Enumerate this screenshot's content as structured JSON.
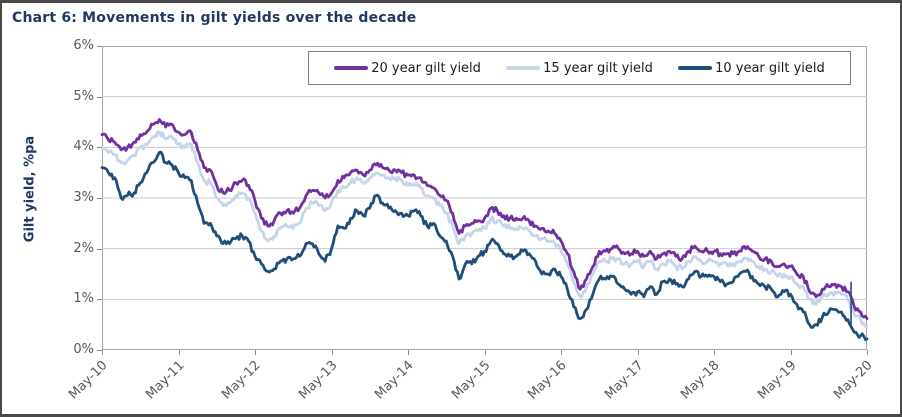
{
  "figure": {
    "title": "Chart 6: Movements in gilt yields over the decade"
  },
  "chart_data": {
    "type": "line",
    "title": "Chart 6: Movements in gilt yields over the decade",
    "xlabel": "",
    "ylabel": "Gilt yield, %pa",
    "ylim": [
      0,
      6
    ],
    "grid": true,
    "legend_position": "top-inside-bordered-box",
    "y_tick_labels": [
      "0%",
      "1%",
      "2%",
      "3%",
      "4%",
      "5%",
      "6%"
    ],
    "x_tick_labels": [
      "May-10",
      "May-11",
      "May-12",
      "May-13",
      "May-14",
      "May-15",
      "May-16",
      "May-17",
      "May-18",
      "May-19",
      "May-20"
    ],
    "x_resolution": "monthly, May-2010 to May-2020 (121 points per series)",
    "series": [
      {
        "name": "20 year gilt yield",
        "color": "#7030A0",
        "values": [
          4.25,
          4.15,
          4.1,
          3.95,
          4.0,
          4.1,
          4.25,
          4.3,
          4.45,
          4.55,
          4.4,
          4.45,
          4.3,
          4.25,
          4.3,
          3.95,
          3.6,
          3.55,
          3.25,
          3.1,
          3.15,
          3.3,
          3.35,
          3.25,
          2.95,
          2.6,
          2.45,
          2.55,
          2.7,
          2.75,
          2.7,
          2.8,
          3.05,
          3.15,
          3.1,
          3.0,
          3.1,
          3.35,
          3.4,
          3.5,
          3.55,
          3.45,
          3.55,
          3.65,
          3.6,
          3.55,
          3.55,
          3.5,
          3.45,
          3.45,
          3.4,
          3.25,
          3.2,
          3.05,
          2.95,
          2.7,
          2.3,
          2.45,
          2.5,
          2.55,
          2.6,
          2.8,
          2.75,
          2.65,
          2.6,
          2.6,
          2.6,
          2.55,
          2.45,
          2.4,
          2.35,
          2.3,
          2.15,
          1.9,
          1.55,
          1.2,
          1.4,
          1.65,
          1.95,
          1.95,
          2.0,
          2.0,
          1.9,
          1.9,
          1.95,
          1.85,
          1.95,
          1.8,
          1.9,
          1.95,
          1.85,
          1.8,
          1.95,
          2.05,
          1.95,
          1.95,
          1.95,
          1.9,
          1.9,
          1.9,
          1.95,
          2.0,
          1.95,
          1.85,
          1.8,
          1.75,
          1.65,
          1.7,
          1.65,
          1.5,
          1.45,
          1.15,
          1.05,
          1.2,
          1.25,
          1.3,
          1.25,
          1.15,
          0.85,
          0.75,
          0.62
        ]
      },
      {
        "name": "15 year gilt yield",
        "color": "#C6D5EC",
        "values": [
          4.0,
          3.9,
          3.85,
          3.7,
          3.75,
          3.85,
          4.0,
          4.05,
          4.2,
          4.3,
          4.17,
          4.2,
          4.05,
          4.0,
          4.05,
          3.7,
          3.35,
          3.3,
          3.0,
          2.85,
          2.9,
          3.05,
          3.1,
          3.0,
          2.7,
          2.35,
          2.15,
          2.25,
          2.4,
          2.45,
          2.4,
          2.5,
          2.8,
          2.9,
          2.85,
          2.75,
          2.9,
          3.15,
          3.2,
          3.3,
          3.4,
          3.3,
          3.4,
          3.5,
          3.45,
          3.4,
          3.4,
          3.35,
          3.25,
          3.25,
          3.2,
          3.05,
          3.0,
          2.85,
          2.7,
          2.45,
          2.1,
          2.25,
          2.3,
          2.35,
          2.4,
          2.6,
          2.55,
          2.45,
          2.4,
          2.4,
          2.4,
          2.35,
          2.25,
          2.2,
          2.15,
          2.1,
          1.95,
          1.7,
          1.35,
          1.05,
          1.25,
          1.5,
          1.75,
          1.75,
          1.8,
          1.8,
          1.7,
          1.7,
          1.75,
          1.65,
          1.75,
          1.6,
          1.7,
          1.75,
          1.65,
          1.6,
          1.75,
          1.85,
          1.75,
          1.75,
          1.75,
          1.7,
          1.7,
          1.7,
          1.75,
          1.8,
          1.75,
          1.65,
          1.6,
          1.55,
          1.45,
          1.5,
          1.45,
          1.3,
          1.25,
          1.0,
          0.9,
          1.05,
          1.1,
          1.15,
          1.1,
          1.0,
          0.7,
          0.6,
          0.47
        ]
      },
      {
        "name": "10 year gilt yield",
        "color": "#1F4E79",
        "values": [
          3.6,
          3.5,
          3.4,
          3.0,
          3.05,
          3.1,
          3.3,
          3.5,
          3.7,
          3.9,
          3.7,
          3.65,
          3.5,
          3.4,
          3.35,
          2.9,
          2.5,
          2.5,
          2.25,
          2.1,
          2.1,
          2.2,
          2.25,
          2.15,
          1.85,
          1.7,
          1.55,
          1.6,
          1.75,
          1.8,
          1.8,
          1.85,
          2.1,
          2.1,
          1.9,
          1.75,
          2.0,
          2.45,
          2.4,
          2.6,
          2.75,
          2.65,
          2.8,
          3.05,
          2.9,
          2.8,
          2.75,
          2.7,
          2.65,
          2.75,
          2.65,
          2.45,
          2.5,
          2.25,
          2.15,
          1.85,
          1.4,
          1.7,
          1.7,
          1.85,
          1.95,
          2.15,
          2.1,
          1.9,
          1.85,
          1.85,
          1.95,
          1.9,
          1.75,
          1.5,
          1.5,
          1.6,
          1.45,
          1.2,
          0.85,
          0.62,
          0.8,
          1.1,
          1.4,
          1.4,
          1.45,
          1.3,
          1.2,
          1.1,
          1.15,
          1.05,
          1.25,
          1.1,
          1.35,
          1.4,
          1.3,
          1.25,
          1.4,
          1.55,
          1.45,
          1.45,
          1.45,
          1.35,
          1.3,
          1.35,
          1.5,
          1.55,
          1.45,
          1.3,
          1.25,
          1.2,
          1.05,
          1.15,
          1.1,
          0.9,
          0.75,
          0.5,
          0.5,
          0.65,
          0.75,
          0.8,
          0.75,
          0.6,
          0.35,
          0.28,
          0.22
        ]
      }
    ],
    "annotations": [
      {
        "name": "mar-2020-yield-spike",
        "month_index": 117.5,
        "from": 0.5,
        "to": 1.35
      }
    ]
  },
  "colors": {
    "title_text": "#203864",
    "axis_text": "#595959",
    "gridline": "#c9c9c9",
    "plot_border": "#a6a6a6",
    "legend_border": "#808080",
    "figure_border": "#4a4a4a"
  }
}
